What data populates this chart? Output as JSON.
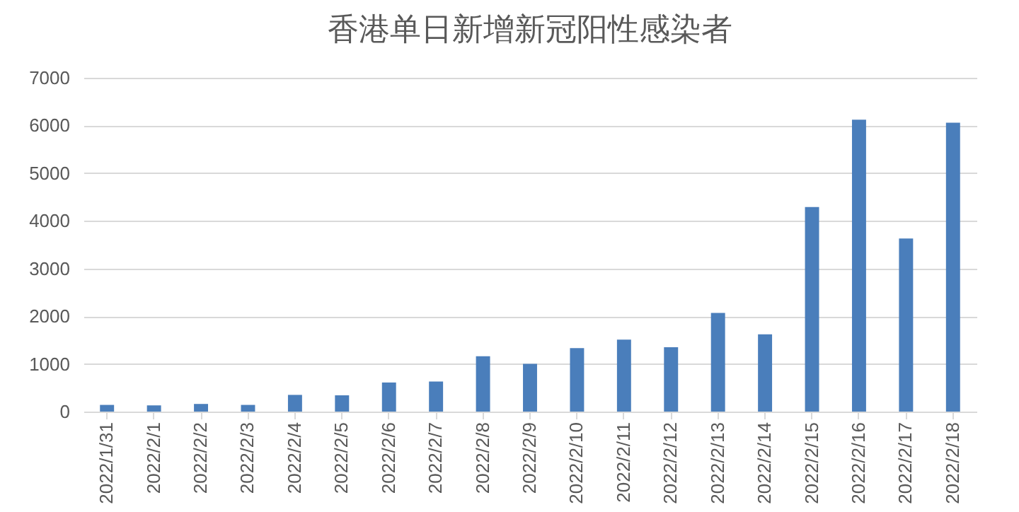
{
  "chart_data": {
    "type": "bar",
    "title": "香港单日新增新冠阳性感染者",
    "categories": [
      "2022/1/31",
      "2022/2/1",
      "2022/2/2",
      "2022/2/3",
      "2022/2/4",
      "2022/2/5",
      "2022/2/6",
      "2022/2/7",
      "2022/2/8",
      "2022/2/9",
      "2022/2/10",
      "2022/2/11",
      "2022/2/12",
      "2022/2/13",
      "2022/2/14",
      "2022/2/15",
      "2022/2/16",
      "2022/2/17",
      "2022/2/18"
    ],
    "values": [
      140,
      130,
      160,
      140,
      350,
      340,
      610,
      630,
      1160,
      1000,
      1330,
      1510,
      1350,
      2070,
      1620,
      4290,
      6120,
      3630,
      6060
    ],
    "color": "#4a7ebb",
    "ylim": [
      0,
      7000
    ],
    "yticks": [
      0,
      1000,
      2000,
      3000,
      4000,
      5000,
      6000,
      7000
    ],
    "grid": "y"
  }
}
